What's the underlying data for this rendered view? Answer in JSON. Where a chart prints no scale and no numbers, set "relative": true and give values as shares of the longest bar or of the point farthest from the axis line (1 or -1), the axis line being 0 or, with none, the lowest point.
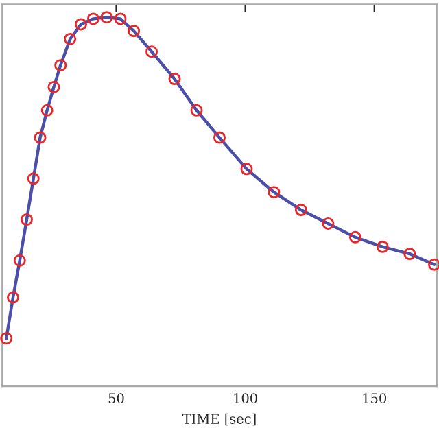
{
  "chart_data": {
    "type": "line",
    "xlabel": "TIME [sec]",
    "relative": true,
    "xlim": [
      5.8,
      174.2
    ],
    "xticks": [
      50,
      100,
      150
    ],
    "tick_labels": "x",
    "grid": false,
    "legend": false,
    "x": [
      7.4,
      10.0,
      12.6,
      15.3,
      17.9,
      20.5,
      23.2,
      25.8,
      28.4,
      32.1,
      36.3,
      41.1,
      46.3,
      51.6,
      56.8,
      63.7,
      72.6,
      81.1,
      90.0,
      100.5,
      111.1,
      121.6,
      132.1,
      142.6,
      153.2,
      163.7,
      173.2
    ],
    "series": [
      {
        "color": "#4b4fa8",
        "line_style": "solid",
        "marker": "none",
        "values": [
          0.13,
          0.241,
          0.341,
          0.452,
          0.563,
          0.674,
          0.748,
          0.811,
          0.87,
          0.941,
          0.981,
          0.996,
          1.0,
          0.996,
          0.963,
          0.907,
          0.833,
          0.748,
          0.674,
          0.589,
          0.526,
          0.478,
          0.441,
          0.404,
          0.378,
          0.359,
          0.33
        ]
      },
      {
        "type": "scatter",
        "color": "#e8262a",
        "marker": "circle",
        "values": [
          0.13,
          0.241,
          0.341,
          0.452,
          0.563,
          0.674,
          0.748,
          0.811,
          0.87,
          0.941,
          0.981,
          0.996,
          1.0,
          0.996,
          0.963,
          0.907,
          0.833,
          0.748,
          0.674,
          0.589,
          0.526,
          0.478,
          0.441,
          0.404,
          0.378,
          0.359,
          0.33
        ]
      }
    ]
  }
}
